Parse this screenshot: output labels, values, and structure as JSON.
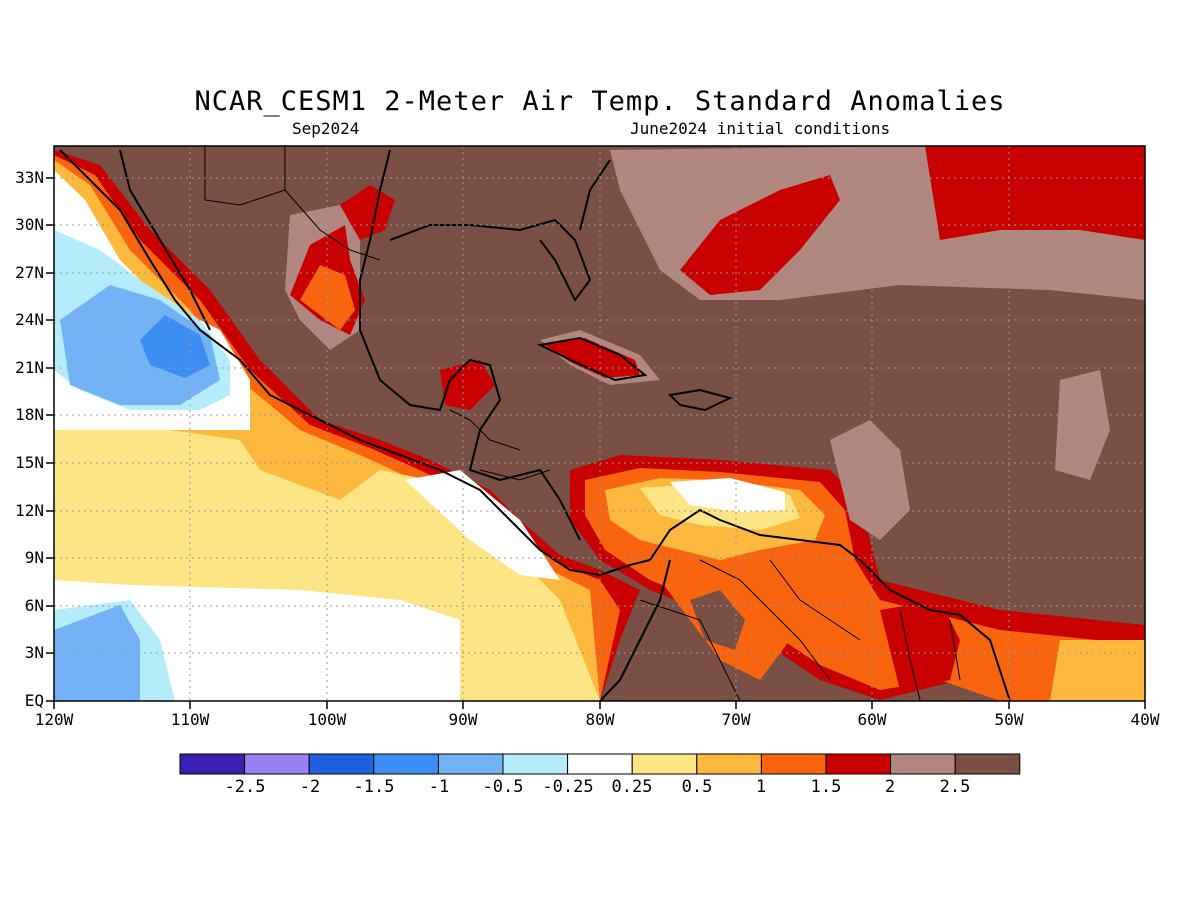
{
  "title": "NCAR_CESM1 2-Meter Air Temp. Standard Anomalies",
  "subtitle_left": "Sep2024",
  "subtitle_right": "June2024 initial conditions",
  "map": {
    "lon_range": [
      -120,
      -40
    ],
    "lat_range": [
      0,
      35
    ],
    "lat_ticks": [
      "33N",
      "30N",
      "27N",
      "24N",
      "21N",
      "18N",
      "15N",
      "12N",
      "9N",
      "6N",
      "3N",
      "EQ"
    ],
    "lon_ticks": [
      "120W",
      "110W",
      "100W",
      "90W",
      "80W",
      "70W",
      "60W",
      "50W",
      "40W"
    ],
    "grid": "dotted"
  },
  "colorbar": {
    "colors": [
      "#3a1fb0",
      "#9b80f5",
      "#1f60e0",
      "#3c8ef2",
      "#73b2f5",
      "#b4ecfb",
      "#ffffff",
      "#fde585",
      "#fdb93d",
      "#f9640f",
      "#c80000",
      "#b08880",
      "#7a5045"
    ],
    "labels": [
      "-2.5",
      "-2",
      "-1.5",
      "-1",
      "-0.5",
      "-0.25",
      "0.25",
      "0.5",
      "1",
      "1.5",
      "2",
      "2.5"
    ]
  }
}
